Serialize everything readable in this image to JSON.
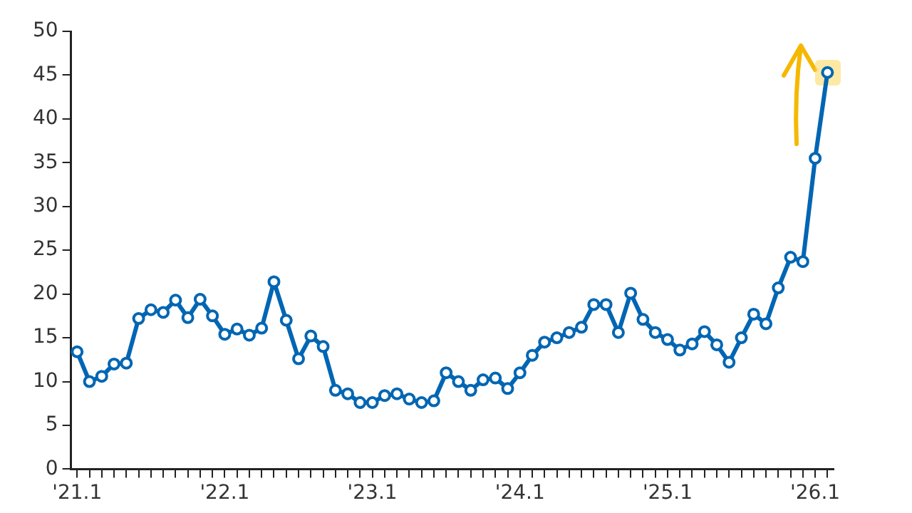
{
  "chart_data": {
    "type": "line",
    "categories": [
      "'21.1",
      null,
      null,
      null,
      null,
      null,
      null,
      null,
      null,
      null,
      null,
      null,
      "'22.1",
      null,
      null,
      null,
      null,
      null,
      null,
      null,
      null,
      null,
      null,
      null,
      "'23.1",
      null,
      null,
      null,
      null,
      null,
      null,
      null,
      null,
      null,
      null,
      null,
      "'24.1",
      null,
      null,
      null,
      null,
      null,
      null,
      null,
      null,
      null,
      null,
      null,
      "'25.1",
      null,
      null,
      null,
      null,
      null,
      null,
      null,
      null,
      null,
      null,
      null,
      "'26.1",
      null
    ],
    "series": [
      {
        "color": "#0066b3",
        "values": [
          13.4,
          10,
          10.6,
          12,
          12.1,
          17.2,
          18.2,
          17.9,
          19.3,
          17.3,
          19.4,
          17.5,
          15.4,
          16,
          15.3,
          16.1,
          21.4,
          17,
          12.6,
          15.2,
          14,
          9,
          8.6,
          7.6,
          7.6,
          8.4,
          8.6,
          8,
          7.6,
          7.8,
          11,
          10,
          9,
          10.2,
          10.4,
          9.2,
          11,
          13,
          14.5,
          15,
          15.6,
          16.2,
          18.8,
          18.8,
          15.6,
          20.1,
          17.1,
          15.6,
          14.8,
          13.6,
          14.3,
          15.7,
          14.2,
          12.2,
          15,
          17.7,
          16.6,
          20.7,
          24.2,
          23.7,
          35.5,
          45.3
        ]
      }
    ],
    "ylim": [
      0,
      50
    ],
    "yticks": [
      0,
      5,
      10,
      15,
      20,
      25,
      30,
      35,
      40,
      45,
      50
    ],
    "grid": false,
    "legend": false,
    "marker": "circle",
    "line_style": "solid"
  }
}
